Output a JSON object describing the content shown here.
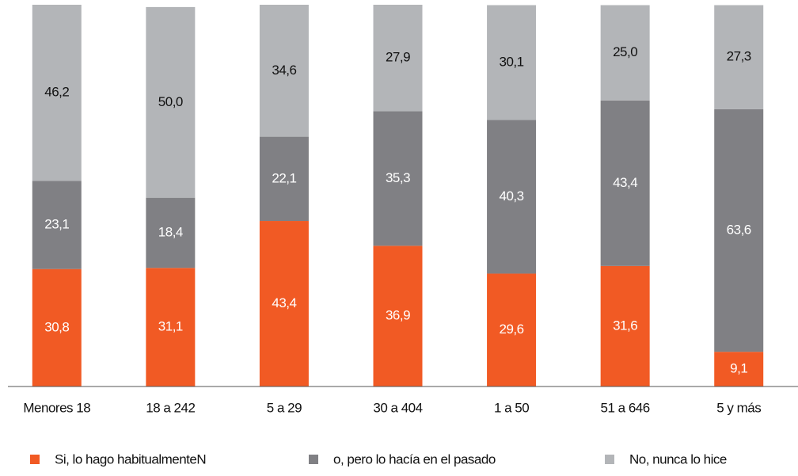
{
  "chart_data": {
    "type": "stacked-bar",
    "categories": [
      "Menores 18",
      "18 a 242",
      "5 a 29",
      "30 a 404",
      "1 a 50",
      "51 a 646",
      "5 y más"
    ],
    "series": [
      {
        "name": "Si, lo hago habitualmenteN",
        "color": "#f15a24",
        "values": [
          30.8,
          31.1,
          43.4,
          36.9,
          29.6,
          31.6,
          9.1
        ],
        "value_labels": [
          "30,8",
          "31,1",
          "43,4",
          "36,9",
          "29,6",
          "31,6",
          "9,1"
        ]
      },
      {
        "name": "o, pero lo hacía en el pasado",
        "color": "#808084",
        "values": [
          23.1,
          18.4,
          22.1,
          35.3,
          40.3,
          43.4,
          63.6
        ],
        "value_labels": [
          "23,1",
          "18,4",
          "22,1",
          "35,3",
          "40,3",
          "43,4",
          "63,6"
        ]
      },
      {
        "name": "No, nunca lo hice",
        "color": "#b3b5b8",
        "values": [
          46.2,
          50.0,
          34.6,
          27.9,
          30.1,
          25.0,
          27.3
        ],
        "value_labels": [
          "46,2",
          "50,0",
          "34,6",
          "27,9",
          "30,1",
          "25,0",
          "27,3"
        ]
      }
    ],
    "legend": "bottom"
  }
}
